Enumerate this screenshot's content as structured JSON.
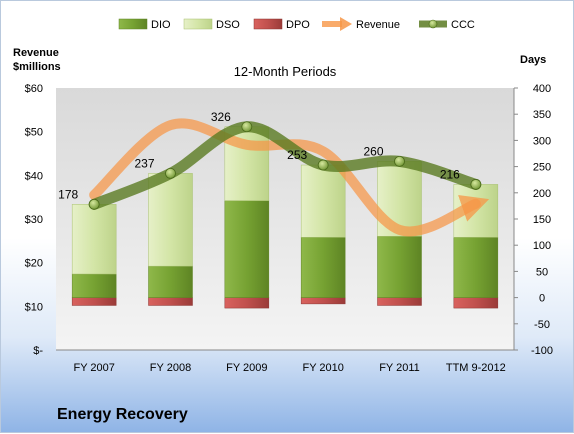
{
  "chart_data": {
    "type": "bar",
    "title": "12-Month Periods",
    "categories": [
      "FY 2007",
      "FY 2008",
      "FY 2009",
      "FY 2010",
      "FY 2011",
      "TTM 9-2012"
    ],
    "left_axis": {
      "label": "Revenue\n$millions",
      "ylim": [
        0,
        60
      ],
      "ticks": [
        0,
        10,
        20,
        30,
        40,
        50,
        60
      ],
      "tick_labels": [
        "$-",
        "$10",
        "$20",
        "$30",
        "$40",
        "$50",
        "$60"
      ]
    },
    "right_axis": {
      "label": "Days",
      "ylim": [
        -100,
        400
      ],
      "ticks": [
        -100,
        -50,
        0,
        50,
        100,
        150,
        200,
        250,
        300,
        350,
        400
      ],
      "tick_labels": [
        "-100",
        "-50",
        "0",
        "50",
        "100",
        "150",
        "200",
        "250",
        "300",
        "350",
        "400"
      ]
    },
    "stacked_series": [
      {
        "name": "DIO",
        "axis": "right",
        "values": [
          45,
          60,
          185,
          115,
          117,
          115
        ],
        "color": "#7aa33a"
      },
      {
        "name": "DSO",
        "axis": "right",
        "values": [
          133,
          177,
          141,
          138,
          143,
          101
        ],
        "color": "#d7e7b0"
      },
      {
        "name": "DPO",
        "axis": "right",
        "values": [
          -15,
          -15,
          -20,
          -12,
          -15,
          -20
        ],
        "color": "#c0504d"
      }
    ],
    "line_series": [
      {
        "name": "Revenue",
        "axis": "left",
        "values": [
          35.5,
          51.5,
          47.0,
          45.5,
          27.5,
          33.5
        ],
        "color": "#f79646"
      },
      {
        "name": "CCC",
        "axis": "right",
        "values": [
          178,
          237,
          326,
          253,
          260,
          216
        ],
        "data_labels": [
          "178",
          "237",
          "326",
          "253",
          "260",
          "216"
        ],
        "color": "#5a7a22"
      }
    ],
    "legend": [
      "DIO",
      "DSO",
      "DPO",
      "Revenue",
      "CCC"
    ],
    "legend_position": "top",
    "grid": false
  },
  "company_name": "Energy Recovery"
}
